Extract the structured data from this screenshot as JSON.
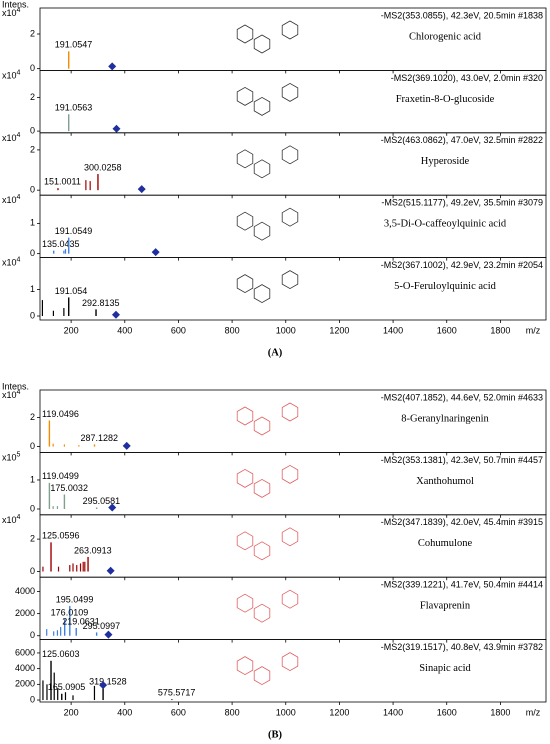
{
  "panels": [
    {
      "label": "(A)",
      "y_axis_label": "Intens.",
      "x_axis_label": "m/z"
    },
    {
      "label": "(B)",
      "y_axis_label": "Intens.",
      "x_axis_label": "m/z"
    }
  ],
  "chart_data": [
    {
      "type": "bar",
      "header": "-MS2(353.0855), 42.3eV, 20.5min #1838",
      "compound": "Chlorogenic acid",
      "color": "#f28c00",
      "y_multiplier": {
        "base": "x10",
        "exponent": "4"
      },
      "xlim": [
        84,
        1970
      ],
      "xticks": [
        200,
        400,
        600,
        800,
        1000,
        1200,
        1400,
        1600,
        1800
      ],
      "ylim": [
        -0.1,
        3.5
      ],
      "yticks": [
        0,
        2
      ],
      "x": [
        191.0547
      ],
      "values": [
        1.0
      ],
      "minor_x": [],
      "minor_values": [],
      "precursor": {
        "x": 353.0855,
        "value": 0.05
      }
    },
    {
      "type": "bar",
      "header": "-MS2(369.1020), 43.0eV, 2.0min #320",
      "compound": "Fraxetin-8-O-glucoside",
      "color": "#7f9f8f",
      "y_multiplier": {
        "base": "x10",
        "exponent": "4"
      },
      "xlim": [
        84,
        1970
      ],
      "xticks": [
        200,
        400,
        600,
        800,
        1000,
        1200,
        1400,
        1600,
        1800
      ],
      "ylim": [
        -0.1,
        3.6
      ],
      "yticks": [
        0,
        2
      ],
      "x": [
        191.0563
      ],
      "values": [
        1.0
      ],
      "minor_x": [],
      "minor_values": [],
      "precursor": {
        "x": 369.102,
        "value": 0.05
      }
    },
    {
      "type": "bar",
      "header": "-MS2(463.0862), 47.0eV, 32.5min #2822",
      "compound": "Hyperoside",
      "color": "#a00000",
      "y_multiplier": {
        "base": "x10",
        "exponent": "4"
      },
      "xlim": [
        84,
        1970
      ],
      "xticks": [
        200,
        400,
        600,
        800,
        1000,
        1200,
        1400,
        1600,
        1800
      ],
      "ylim": [
        -0.25,
        2.85
      ],
      "yticks": [
        0,
        2
      ],
      "x": [
        300.0258,
        151.0011
      ],
      "values": [
        0.8,
        0.1
      ],
      "minor_x": [
        255.0,
        271.0
      ],
      "minor_values": [
        0.5,
        0.45
      ],
      "precursor": {
        "x": 463.0862,
        "value": 0.05
      }
    },
    {
      "type": "bar",
      "header": "-MS2(515.1177), 49.2eV, 35.5min #3079",
      "compound": "3,5-Di-O-caffeoylquinic acid",
      "color": "#3d7fe0",
      "y_multiplier": {
        "base": "x10",
        "exponent": "4"
      },
      "xlim": [
        84,
        1970
      ],
      "xticks": [
        200,
        400,
        600,
        800,
        1000,
        1200,
        1400,
        1600,
        1800
      ],
      "ylim": [
        -0.13,
        1.93
      ],
      "yticks": [
        0,
        1
      ],
      "x": [
        135.0435,
        191.0549
      ],
      "values": [
        0.1,
        0.53
      ],
      "minor_x": [
        173.0,
        179.0
      ],
      "minor_values": [
        0.1,
        0.15
      ],
      "precursor": {
        "x": 515.1177,
        "value": 0.05
      }
    },
    {
      "type": "bar",
      "header": "-MS2(367.1002), 42.9eV, 23.2min #2054",
      "compound": "5-O-Feruloylquinic acid",
      "color": "#000000",
      "y_multiplier": {
        "base": "x10",
        "exponent": "4"
      },
      "xlim": [
        84,
        1970
      ],
      "xticks": [
        200,
        400,
        600,
        800,
        1000,
        1200,
        1400,
        1600,
        1800
      ],
      "ylim": [
        -0.15,
        2.2
      ],
      "yticks": [
        0,
        1
      ],
      "x": [
        191.054,
        292.8135
      ],
      "values": [
        0.7,
        0.25
      ],
      "minor_x": [
        93.0,
        134.0,
        173.0
      ],
      "minor_values": [
        0.6,
        0.2,
        0.3
      ],
      "precursor": {
        "x": 367.1002,
        "value": 0.05
      }
    },
    {
      "type": "bar",
      "header": "-MS2(407.1852), 44.6eV, 52.0min #4633",
      "compound": "8-Geranylnaringenin",
      "color": "#f28c00",
      "y_multiplier": {
        "base": "x10",
        "exponent": "4"
      },
      "xlim": [
        84,
        1970
      ],
      "xticks": [
        200,
        400,
        600,
        800,
        1000,
        1200,
        1400,
        1600,
        1800
      ],
      "ylim": [
        -0.4,
        3.9
      ],
      "yticks": [
        0,
        2
      ],
      "x": [
        119.0496,
        287.1282
      ],
      "values": [
        1.8,
        0.15
      ],
      "minor_x": [
        133.0,
        175.0,
        229.0
      ],
      "minor_values": [
        0.2,
        0.15,
        0.1
      ],
      "precursor": {
        "x": 407.1852,
        "value": 0.05
      }
    },
    {
      "type": "bar",
      "header": "-MS2(353.1381), 42.3eV, 50.7min #4457",
      "compound": "Xanthohumol",
      "color": "#7f9f8f",
      "y_multiplier": {
        "base": "x10",
        "exponent": "5"
      },
      "xlim": [
        84,
        1970
      ],
      "xticks": [
        200,
        400,
        600,
        800,
        1000,
        1200,
        1400,
        1600,
        1800
      ],
      "ylim": [
        -0.2,
        1.95
      ],
      "yticks": [
        0,
        1
      ],
      "x": [
        119.0499,
        175.0032,
        295.0581
      ],
      "values": [
        0.9,
        0.5,
        0.05
      ],
      "minor_x": [
        133.0,
        149.0
      ],
      "minor_values": [
        0.1,
        0.1
      ],
      "precursor": {
        "x": 353.1381,
        "value": 0.05
      }
    },
    {
      "type": "bar",
      "header": "-MS2(347.1839), 42.0eV, 45.4min #3915",
      "compound": "Cohumulone",
      "color": "#a00000",
      "y_multiplier": {
        "base": "x10",
        "exponent": "4"
      },
      "xlim": [
        84,
        1970
      ],
      "xticks": [
        200,
        400,
        600,
        800,
        1000,
        1200,
        1400,
        1600,
        1800
      ],
      "ylim": [
        -0.35,
        3.5
      ],
      "yticks": [
        0,
        2
      ],
      "x": [
        125.0596,
        263.0913
      ],
      "values": [
        1.8,
        0.9
      ],
      "minor_x": [
        95.0,
        153.0,
        195.0,
        207.0,
        221.0,
        235.0,
        245.0,
        251.0
      ],
      "minor_values": [
        0.3,
        0.3,
        0.4,
        0.5,
        0.4,
        0.5,
        0.6,
        0.6
      ],
      "precursor": {
        "x": 347.1839,
        "value": 0.05
      }
    },
    {
      "type": "bar",
      "header": "-MS2(339.1221), 41.7eV, 50.4min #4414",
      "compound": "Flavaprenin",
      "color": "#3d7fe0",
      "xlim": [
        84,
        1970
      ],
      "xticks": [
        200,
        400,
        600,
        800,
        1000,
        1200,
        1400,
        1600,
        1800
      ],
      "ylim": [
        -350,
        5300
      ],
      "yticks": [
        0,
        2000,
        4000
      ],
      "x": [
        195.0499,
        176.0109,
        219.0631,
        295.0997
      ],
      "values": [
        2700,
        1500,
        700,
        300
      ],
      "minor_x": [
        109.0,
        135.0,
        149.0,
        161.0
      ],
      "minor_values": [
        600,
        400,
        500,
        800
      ],
      "precursor": {
        "x": 339.1221,
        "value": 100
      }
    },
    {
      "type": "bar",
      "header": "-MS2(319.1517), 40.8eV, 43.9min #3782",
      "compound": "Sinapic acid",
      "color": "#000000",
      "xlim": [
        84,
        1970
      ],
      "xticks": [
        200,
        400,
        600,
        800,
        1000,
        1200,
        1400,
        1600,
        1800
      ],
      "ylim": [
        -250,
        7700
      ],
      "yticks": [
        0,
        2000,
        4000,
        6000
      ],
      "x": [
        125.0603,
        165.0905,
        319.1528,
        575.5717
      ],
      "values": [
        5000,
        800,
        1500,
        100
      ],
      "minor_x": [
        95.0,
        110.0,
        137.0,
        150.0,
        179.0,
        207.0,
        287.0
      ],
      "minor_values": [
        2500,
        2000,
        3500,
        1500,
        1000,
        600,
        1800
      ],
      "precursor": {
        "x": 319.1517,
        "value": 1900
      }
    }
  ]
}
